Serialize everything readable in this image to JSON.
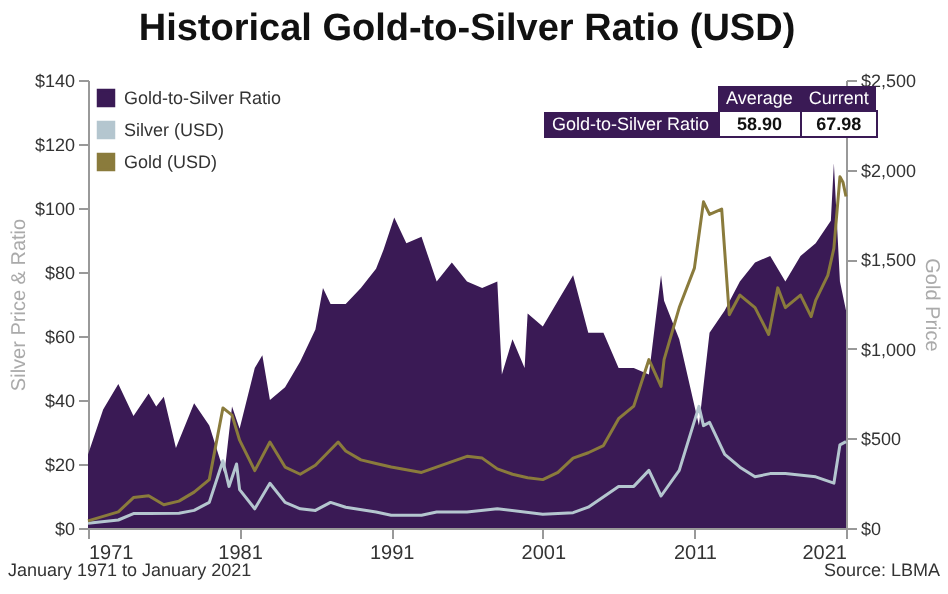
{
  "chart_data": {
    "type": "area",
    "title": "Historical Gold-to-Silver Ratio (USD)",
    "ylabel": "Silver Price & Ratio",
    "y2label": "Gold Price",
    "xlim": [
      1971,
      2021
    ],
    "xticks": [
      1971,
      1981,
      1991,
      2001,
      2011,
      2021
    ],
    "ylim": [
      0,
      140
    ],
    "yticks": [
      {
        "value": 0,
        "label": "$0"
      },
      {
        "value": 20,
        "label": "$20"
      },
      {
        "value": 40,
        "label": "$40"
      },
      {
        "value": 60,
        "label": "$60"
      },
      {
        "value": 80,
        "label": "$80"
      },
      {
        "value": 100,
        "label": "$100"
      },
      {
        "value": 120,
        "label": "$120"
      },
      {
        "value": 140,
        "label": "$140"
      }
    ],
    "y2lim": [
      0,
      2500
    ],
    "y2ticks": [
      {
        "value": 0,
        "label": "$0"
      },
      {
        "value": 500,
        "label": "$500"
      },
      {
        "value": 1000,
        "label": "$1,000"
      },
      {
        "value": 1500,
        "label": "$1,500"
      },
      {
        "value": 2000,
        "label": "$2,000"
      },
      {
        "value": 2500,
        "label": "$2,500"
      }
    ],
    "grid": false,
    "legend": "top left",
    "series": [
      {
        "name": "Gold-to-Silver Ratio",
        "color": "#3a1a55",
        "x": [
          1971,
          1972,
          1973,
          1974,
          1975,
          1975.5,
          1976,
          1976.8,
          1978,
          1979,
          1980,
          1980.5,
          1981,
          1982,
          1982.5,
          1983,
          1984,
          1985,
          1986,
          1986.5,
          1987,
          1988,
          1989,
          1990,
          1990.5,
          1991.2,
          1992,
          1993,
          1994,
          1995,
          1996,
          1997,
          1998,
          1998.3,
          1999,
          1999.8,
          2000,
          2001,
          2002,
          2003,
          2004,
          2005,
          2006,
          2007,
          2008,
          2008.8,
          2009,
          2010,
          2011.3,
          2012,
          2013,
          2014,
          2015,
          2016,
          2017,
          2018,
          2019,
          2020,
          2020.2,
          2020.6,
          2021
        ],
        "values": [
          23,
          37,
          45,
          35,
          42,
          38,
          41,
          25,
          39,
          32,
          17,
          38,
          31,
          50,
          54,
          40,
          44,
          52,
          62,
          75,
          70,
          70,
          75,
          81,
          87,
          97,
          89,
          91,
          77,
          83,
          77,
          75,
          77,
          48,
          59,
          50,
          67,
          63,
          71,
          79,
          61,
          61,
          50,
          50,
          48,
          79,
          71,
          59,
          32,
          61,
          68,
          77,
          83,
          85,
          77,
          85,
          89,
          96,
          114,
          77,
          68
        ]
      },
      {
        "name": "Silver (USD)",
        "type": "line",
        "color": "#b4c6cf",
        "x": [
          1971,
          1973,
          1974,
          1975,
          1977,
          1978,
          1979,
          1979.9,
          1980.3,
          1980.8,
          1981,
          1982,
          1983,
          1984,
          1985,
          1986,
          1987,
          1988,
          1990,
          1991,
          1993,
          1994,
          1996,
          1998,
          2001,
          2003,
          2004,
          2006,
          2007,
          2008,
          2008.8,
          2010,
          2011.3,
          2011.6,
          2012,
          2013,
          2014,
          2015,
          2016,
          2017,
          2019,
          2020.2,
          2020.6,
          2021
        ],
        "values": [
          1.5,
          2.5,
          4.5,
          4.5,
          4.6,
          5.5,
          8,
          21,
          13,
          20,
          12,
          6,
          14,
          8,
          6,
          5.5,
          8,
          6.5,
          5,
          4,
          4,
          5,
          5,
          6,
          4.3,
          4.8,
          6.5,
          13,
          13,
          18,
          10,
          18,
          38,
          32,
          33,
          23,
          19,
          16,
          17,
          17,
          16,
          14,
          26,
          27
        ]
      },
      {
        "name": "Gold (USD)",
        "type": "line",
        "axis": "y2",
        "color": "#8a7b3c",
        "x": [
          1971,
          1973,
          1974,
          1975,
          1976,
          1977,
          1978,
          1979,
          1979.9,
          1980.5,
          1981,
          1982,
          1983,
          1984,
          1985,
          1986,
          1987.5,
          1988,
          1989,
          1990,
          1991,
          1993,
          1996,
          1997,
          1998,
          1999,
          2000,
          2001,
          2002,
          2003,
          2004,
          2005,
          2006,
          2007,
          2008,
          2008.8,
          2009,
          2010,
          2011,
          2011.6,
          2012,
          2012.8,
          2013.3,
          2014,
          2015,
          2015.9,
          2016.5,
          2017,
          2018,
          2018.7,
          2019,
          2019.8,
          2020.2,
          2020.6,
          2020.8,
          2021
        ],
        "values": [
          40,
          90,
          170,
          180,
          130,
          150,
          200,
          270,
          670,
          630,
          490,
          320,
          480,
          340,
          300,
          350,
          480,
          430,
          380,
          360,
          340,
          310,
          400,
          390,
          330,
          300,
          280,
          270,
          310,
          390,
          420,
          460,
          610,
          680,
          940,
          790,
          940,
          1230,
          1450,
          1820,
          1750,
          1780,
          1190,
          1300,
          1230,
          1080,
          1340,
          1230,
          1300,
          1180,
          1270,
          1410,
          1560,
          1960,
          1930,
          1850
        ]
      }
    ],
    "annotations": [
      "Average",
      "Current",
      "Gold-to-Silver Ratio",
      "58.90",
      "67.98",
      "January 1971 to January 2021",
      "Source: LBMA"
    ]
  }
}
